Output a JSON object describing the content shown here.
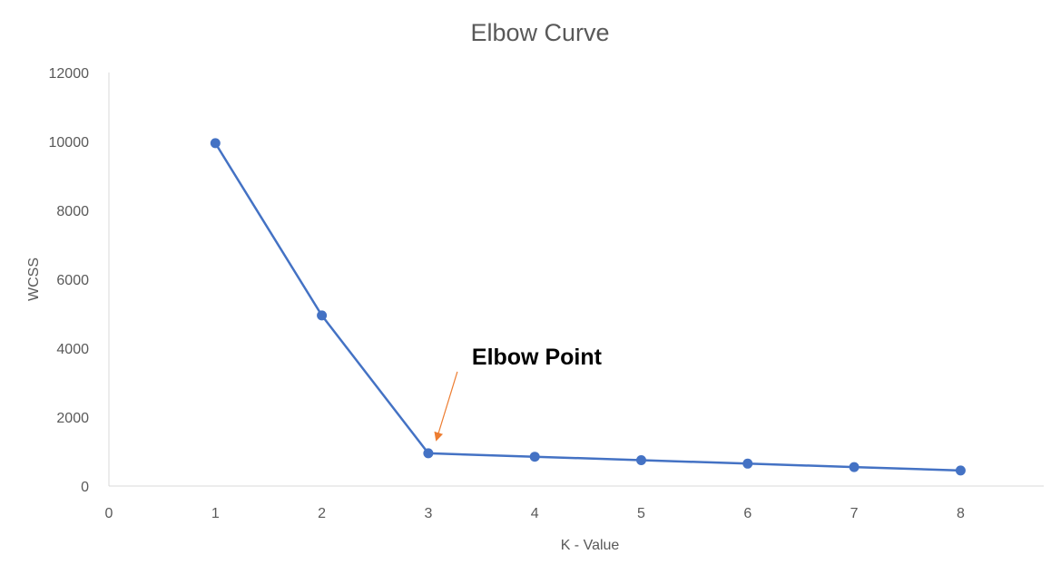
{
  "chart_data": {
    "type": "line",
    "title": "Elbow Curve",
    "xlabel": "K - Value",
    "ylabel": "WCSS",
    "xlim": [
      0,
      9
    ],
    "ylim": [
      0,
      12000
    ],
    "x_ticks": [
      0,
      1,
      2,
      3,
      4,
      5,
      6,
      7,
      8
    ],
    "y_ticks": [
      0,
      2000,
      4000,
      6000,
      8000,
      10000,
      12000
    ],
    "grid": false,
    "legend": "none",
    "series": [
      {
        "x": [
          1,
          2,
          3,
          4,
          5,
          6,
          7,
          8
        ],
        "values": [
          9950,
          4950,
          950,
          850,
          750,
          650,
          550,
          450
        ],
        "color": "#4472c4"
      }
    ],
    "annotations": [
      {
        "text": "Elbow Point",
        "target_x": 3,
        "target_y": 950,
        "arrow_color": "#ed7d31"
      }
    ]
  }
}
